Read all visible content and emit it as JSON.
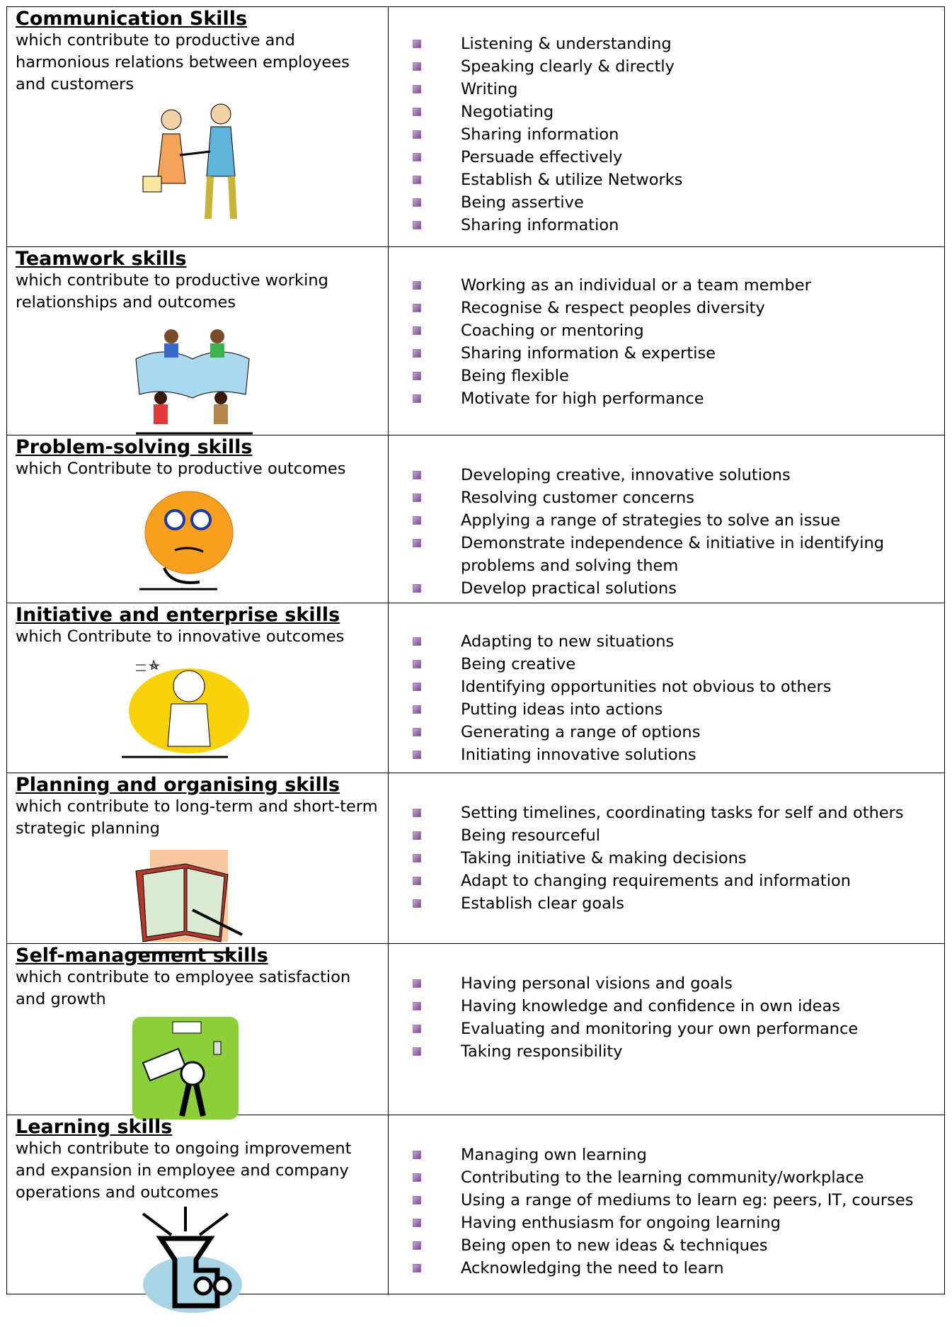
{
  "sections": [
    {
      "title": "Communication Skills",
      "description": "which contribute to productive and harmonious relations between employees and customers",
      "items": [
        "Listening & understanding",
        "Speaking clearly & directly",
        "Writing",
        "Negotiating",
        "Sharing information",
        "Persuade effectively",
        "Establish & utilize Networks",
        "Being assertive",
        "Sharing information"
      ]
    },
    {
      "title": "Teamwork skills",
      "description": "which contribute to productive working relationships and outcomes",
      "items": [
        "Working as an individual or a team member",
        "Recognise & respect peoples diversity",
        "Coaching or mentoring",
        "Sharing information & expertise",
        "Being flexible",
        "Motivate for high performance"
      ]
    },
    {
      "title": "Problem-solving skills",
      "description": "which Contribute to productive outcomes",
      "items": [
        "Developing creative, innovative solutions",
        "Resolving customer concerns",
        "Applying a range of strategies to solve an issue",
        "Demonstrate independence & initiative in identifying problems and solving them",
        "Develop practical solutions"
      ]
    },
    {
      "title": "Initiative and enterprise skills",
      "description": "which Contribute to innovative outcomes",
      "items": [
        "Adapting to new situations",
        "Being creative",
        "Identifying opportunities not obvious to others",
        "Putting ideas into actions",
        "Generating a range of options",
        "Initiating innovative solutions"
      ]
    },
    {
      "title": "Planning and organising skills",
      "description": "which contribute to long-term and short-term strategic planning",
      "items": [
        "Setting timelines, coordinating tasks for self and others",
        "Being resourceful",
        "Taking initiative & making decisions",
        "Adapt to changing requirements and information",
        "Establish clear goals"
      ]
    },
    {
      "title": "Self-management skills",
      "description": "which contribute to employee satisfaction and growth",
      "items": [
        "Having personal visions and goals",
        "Having knowledge and confidence in own ideas",
        "Evaluating and monitoring your own performance",
        "Taking responsibility"
      ]
    },
    {
      "title": "Learning skills",
      "description": "which contribute to ongoing improvement and expansion in employee and company operations and outcomes",
      "items": [
        "Managing own learning",
        "Contributing to the learning community/workplace",
        "Using a range of mediums to learn eg: peers, IT, courses",
        "Having enthusiasm for ongoing learning",
        "Being open to new ideas & techniques",
        "Acknowledging the need to learn"
      ]
    }
  ]
}
